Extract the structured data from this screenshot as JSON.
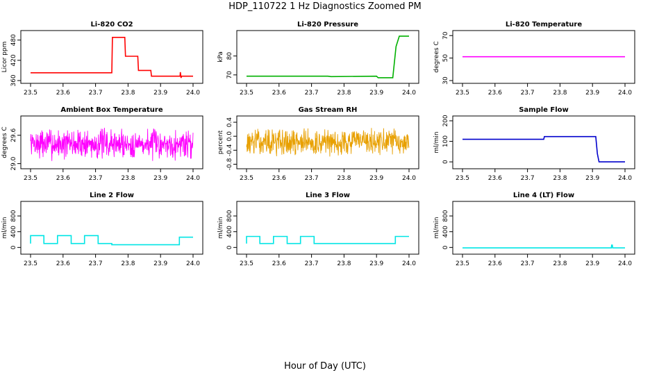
{
  "figure": {
    "title": "HDP_110722  1 Hz Diagnostics Zoomed PM",
    "xlabel": "Hour of Day (UTC)"
  },
  "chart_data": [
    {
      "type": "line",
      "title": "Li-820 CO2",
      "ylabel": "Licor ppm",
      "color": "#ff0000",
      "xlim": [
        23.5,
        24.0
      ],
      "ylim": [
        360,
        500
      ],
      "xticks": [
        "23.5",
        "23.6",
        "23.7",
        "23.8",
        "23.9",
        "24.0"
      ],
      "yticks": [
        360,
        420,
        480
      ],
      "series": [
        {
          "x": [
            23.5,
            23.75,
            23.752,
            23.79,
            23.792,
            23.83,
            23.832,
            23.87,
            23.872,
            23.96,
            23.961,
            23.963,
            23.965,
            24.0
          ],
          "y": [
            383,
            383,
            488,
            488,
            432,
            432,
            390,
            390,
            373,
            373,
            385,
            368,
            373,
            373
          ]
        }
      ]
    },
    {
      "type": "line",
      "title": "Li-820 Pressure",
      "ylabel": "kPa",
      "color": "#00b000",
      "xlim": [
        23.5,
        24.0
      ],
      "ylim": [
        67,
        92
      ],
      "xticks": [
        "23.5",
        "23.6",
        "23.7",
        "23.8",
        "23.9",
        "24.0"
      ],
      "yticks": [
        70,
        80
      ],
      "series": [
        {
          "x": [
            23.5,
            23.75,
            23.76,
            23.9,
            23.905,
            23.95,
            23.96,
            23.97,
            24.0
          ],
          "y": [
            69.3,
            69.3,
            69.1,
            69.3,
            68.5,
            68.5,
            85,
            90.5,
            90.5
          ]
        }
      ]
    },
    {
      "type": "line",
      "title": "Li-820 Temperature",
      "ylabel": "degrees C",
      "color": "#ff00ff",
      "xlim": [
        23.5,
        24.0
      ],
      "ylim": [
        30,
        72
      ],
      "xticks": [
        "23.5",
        "23.6",
        "23.7",
        "23.8",
        "23.9",
        "24.0"
      ],
      "yticks": [
        30,
        50,
        70
      ],
      "series": [
        {
          "x": [
            23.5,
            24.0
          ],
          "y": [
            51.2,
            51.2
          ]
        }
      ]
    },
    {
      "type": "line",
      "title": "Ambient Box Temperature",
      "ylabel": "degrees C",
      "color": "#ff00ff",
      "xlim": [
        23.5,
        24.0
      ],
      "ylim": [
        28.95,
        29.95
      ],
      "xticks": [
        "23.5",
        "23.6",
        "23.7",
        "23.8",
        "23.9",
        "24.0"
      ],
      "yticks": [
        "29.0",
        "29.6"
      ],
      "noise": {
        "center": 29.42,
        "amplitude": 0.38,
        "seed": 7
      }
    },
    {
      "type": "line",
      "title": "Gas Stream RH",
      "ylabel": "percent",
      "color": "#e8a000",
      "xlim": [
        23.5,
        24.0
      ],
      "ylim": [
        -0.85,
        0.5
      ],
      "xticks": [
        "23.5",
        "23.6",
        "23.7",
        "23.8",
        "23.9",
        "24.0"
      ],
      "yticks": [
        "-0.8",
        "-0.4",
        "0.0",
        "0.4"
      ],
      "noise": {
        "center": -0.17,
        "amplitude": 0.45,
        "seed": 13
      }
    },
    {
      "type": "line",
      "title": "Sample Flow",
      "ylabel": "ml/min",
      "color": "#0000cc",
      "xlim": [
        23.5,
        24.0
      ],
      "ylim": [
        -20,
        210
      ],
      "xticks": [
        "23.5",
        "23.6",
        "23.7",
        "23.8",
        "23.9",
        "24.0"
      ],
      "yticks": [
        0,
        100,
        200
      ],
      "series": [
        {
          "x": [
            23.5,
            23.75,
            23.752,
            23.91,
            23.915,
            23.92,
            24.0
          ],
          "y": [
            110,
            110,
            123,
            123,
            40,
            0,
            0
          ]
        }
      ]
    },
    {
      "type": "line",
      "title": "Line 2 Flow",
      "ylabel": "ml/min",
      "color": "#00e5e5",
      "xlim": [
        23.5,
        24.0
      ],
      "ylim": [
        -100,
        1100
      ],
      "xticks": [
        "23.5",
        "23.6",
        "23.7",
        "23.8",
        "23.9",
        "24.0"
      ],
      "yticks": [
        0,
        400,
        800
      ],
      "series": [
        {
          "x": [
            23.5,
            23.5,
            23.541,
            23.541,
            23.583,
            23.583,
            23.625,
            23.625,
            23.666,
            23.666,
            23.708,
            23.708,
            23.75,
            23.75,
            23.958,
            23.958,
            24.0
          ],
          "y": [
            100,
            300,
            300,
            100,
            100,
            300,
            300,
            100,
            100,
            300,
            300,
            100,
            100,
            70,
            70,
            260,
            260
          ]
        }
      ]
    },
    {
      "type": "line",
      "title": "Line 3 Flow",
      "ylabel": "ml/min",
      "color": "#00e5e5",
      "xlim": [
        23.5,
        24.0
      ],
      "ylim": [
        -100,
        1100
      ],
      "xticks": [
        "23.5",
        "23.6",
        "23.7",
        "23.8",
        "23.9",
        "24.0"
      ],
      "yticks": [
        0,
        400,
        800
      ],
      "series": [
        {
          "x": [
            23.5,
            23.5,
            23.541,
            23.541,
            23.583,
            23.583,
            23.625,
            23.625,
            23.666,
            23.666,
            23.708,
            23.708,
            23.958,
            23.958,
            24.0
          ],
          "y": [
            100,
            280,
            280,
            100,
            100,
            280,
            280,
            100,
            100,
            280,
            280,
            100,
            100,
            280,
            280
          ]
        }
      ]
    },
    {
      "type": "line",
      "title": "Line 4 (LT) Flow",
      "ylabel": "ml/min",
      "color": "#00e5e5",
      "xlim": [
        23.5,
        24.0
      ],
      "ylim": [
        -100,
        1100
      ],
      "xticks": [
        "23.5",
        "23.6",
        "23.7",
        "23.8",
        "23.9",
        "24.0"
      ],
      "yticks": [
        0,
        400,
        800
      ],
      "series": [
        {
          "x": [
            23.5,
            23.958,
            23.959,
            23.961,
            23.962,
            24.0
          ],
          "y": [
            -10,
            -10,
            60,
            60,
            -10,
            -10
          ]
        }
      ]
    }
  ]
}
